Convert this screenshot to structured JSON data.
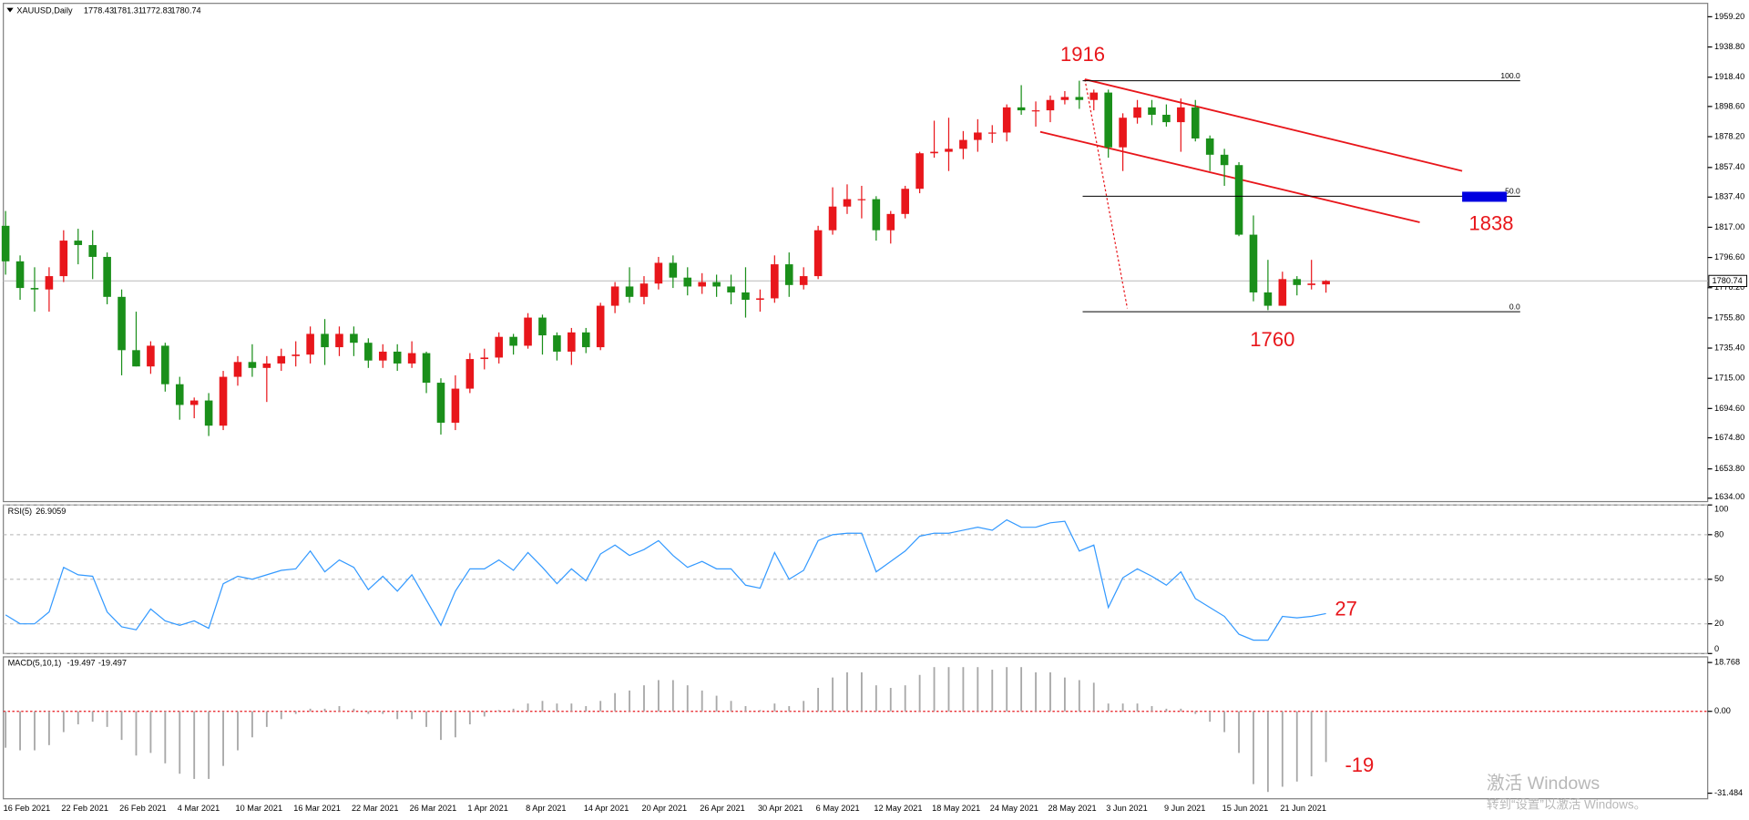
{
  "chart_data": [
    {
      "type": "candlestick",
      "title": "XAUUSD,Daily",
      "categories": [
        "16 Feb 2021",
        null,
        null,
        null,
        "22 Feb 2021",
        null,
        null,
        null,
        "26 Feb 2021",
        null,
        null,
        null,
        "4 Mar 2021",
        null,
        null,
        null,
        "10 Mar 2021",
        null,
        null,
        null,
        "16 Mar 2021",
        null,
        null,
        null,
        "22 Mar 2021",
        null,
        null,
        null,
        "26 Mar 2021",
        null,
        null,
        null,
        "1 Apr 2021",
        null,
        null,
        null,
        "8 Apr 2021",
        null,
        null,
        null,
        "14 Apr 2021",
        null,
        null,
        null,
        "20 Apr 2021",
        null,
        null,
        null,
        "26 Apr 2021",
        null,
        null,
        null,
        "30 Apr 2021",
        null,
        null,
        null,
        "6 May 2021",
        null,
        null,
        null,
        "12 May 2021",
        null,
        null,
        null,
        "18 May 2021",
        null,
        null,
        null,
        "24 May 2021",
        null,
        null,
        null,
        "28 May 2021",
        null,
        null,
        null,
        "3 Jun 2021",
        null,
        null,
        null,
        "9 Jun 2021",
        null,
        null,
        null,
        "15 Jun 2021",
        null,
        null,
        null,
        "21 Jun 2021",
        null,
        null,
        null
      ],
      "open": [
        1818,
        1794,
        1776,
        1775,
        1784,
        1808,
        1805,
        1797,
        1770,
        1734,
        1723,
        1737,
        1711,
        1697,
        1700,
        1683,
        1716,
        1726,
        1722,
        1725,
        1730,
        1731,
        1745,
        1736,
        1745,
        1739,
        1727,
        1733,
        1725,
        1732,
        1712,
        1685,
        1708,
        1728,
        1729,
        1743,
        1737,
        1756,
        1744,
        1733,
        1746,
        1736,
        1764,
        1777,
        1770,
        1779,
        1793,
        1783,
        1777,
        1780,
        1777,
        1773,
        1768,
        1769,
        1792,
        1778,
        1784,
        1815,
        1831,
        1836,
        1836,
        1815,
        1826,
        1843,
        1867,
        1868,
        1870,
        1876,
        1881,
        1881,
        1898,
        1896,
        1896,
        1903,
        1905,
        1903,
        1908,
        1871,
        1891,
        1898,
        1893,
        1888,
        1898,
        1877,
        1866,
        1859,
        1812,
        1773,
        1764,
        1782,
        1778,
        1778.43
      ],
      "high": [
        1828,
        1798,
        1790,
        1790,
        1815,
        1816,
        1815,
        1800,
        1775,
        1760,
        1740,
        1739,
        1716,
        1702,
        1705,
        1720,
        1730,
        1738,
        1730,
        1735,
        1740,
        1750,
        1755,
        1750,
        1750,
        1742,
        1738,
        1738,
        1740,
        1733,
        1715,
        1717,
        1732,
        1735,
        1746,
        1745,
        1759,
        1758,
        1746,
        1749,
        1749,
        1766,
        1780,
        1790,
        1784,
        1797,
        1798,
        1790,
        1786,
        1785,
        1785,
        1790,
        1775,
        1798,
        1800,
        1790,
        1818,
        1844,
        1846,
        1845,
        1838,
        1828,
        1845,
        1868,
        1889,
        1891,
        1882,
        1890,
        1886,
        1900,
        1913,
        1902,
        1906,
        1909,
        1916,
        1910,
        1910,
        1894,
        1903,
        1903,
        1900,
        1904,
        1903,
        1879,
        1870,
        1861,
        1825,
        1795,
        1787,
        1784,
        1795,
        1781.31
      ],
      "low": [
        1785,
        1768,
        1760,
        1760,
        1780,
        1792,
        1782,
        1765,
        1717,
        1723,
        1718,
        1706,
        1687,
        1688,
        1676,
        1680,
        1710,
        1716,
        1699,
        1720,
        1723,
        1725,
        1724,
        1730,
        1730,
        1722,
        1722,
        1720,
        1722,
        1705,
        1677,
        1680,
        1705,
        1721,
        1725,
        1731,
        1735,
        1731,
        1727,
        1724,
        1732,
        1734,
        1759,
        1766,
        1765,
        1775,
        1776,
        1771,
        1772,
        1770,
        1765,
        1756,
        1760,
        1766,
        1770,
        1775,
        1782,
        1812,
        1826,
        1823,
        1808,
        1806,
        1823,
        1840,
        1864,
        1855,
        1863,
        1868,
        1874,
        1875,
        1893,
        1885,
        1888,
        1900,
        1897,
        1896,
        1864,
        1855,
        1887,
        1886,
        1885,
        1868,
        1875,
        1855,
        1845,
        1811,
        1767,
        1761,
        1764,
        1771,
        1775,
        1772.83
      ],
      "close": [
        1794,
        1776,
        1775,
        1784,
        1808,
        1805,
        1797,
        1770,
        1734,
        1723,
        1737,
        1711,
        1697,
        1700,
        1683,
        1716,
        1726,
        1722,
        1725,
        1730,
        1731,
        1745,
        1736,
        1745,
        1739,
        1727,
        1733,
        1725,
        1732,
        1712,
        1685,
        1708,
        1728,
        1729,
        1743,
        1737,
        1756,
        1744,
        1733,
        1746,
        1736,
        1764,
        1777,
        1770,
        1779,
        1793,
        1783,
        1777,
        1780,
        1777,
        1773,
        1768,
        1769,
        1792,
        1778,
        1784,
        1815,
        1831,
        1836,
        1836,
        1815,
        1826,
        1843,
        1867,
        1868,
        1870,
        1876,
        1881,
        1881,
        1898,
        1896,
        1896,
        1903,
        1905,
        1903,
        1908,
        1871,
        1891,
        1898,
        1893,
        1888,
        1898,
        1877,
        1866,
        1859,
        1812,
        1773,
        1764,
        1782,
        1778,
        1779,
        1780.74
      ],
      "up_color": "#e8161b",
      "down_color": "#1a8f1a",
      "ylim": [
        1631.7,
        1966.75
      ],
      "yticks": [
        {
          "value": 1959.2,
          "label": "1959.20"
        },
        {
          "value": 1938.8,
          "label": "1938.80"
        },
        {
          "value": 1918.4,
          "label": "1918.40"
        },
        {
          "value": 1898.6,
          "label": "1898.60"
        },
        {
          "value": 1878.2,
          "label": "1878.20"
        },
        {
          "value": 1857.4,
          "label": "1857.40"
        },
        {
          "value": 1837.4,
          "label": "1837.40"
        },
        {
          "value": 1817,
          "label": "1817.00"
        },
        {
          "value": 1796.6,
          "label": "1796.60"
        },
        {
          "value": 1776.2,
          "label": "1776.20"
        },
        {
          "value": 1755.8,
          "label": "1755.80"
        },
        {
          "value": 1735.4,
          "label": "1735.40"
        },
        {
          "value": 1715,
          "label": "1715.00"
        },
        {
          "value": 1694.6,
          "label": "1694.60"
        },
        {
          "value": 1674.8,
          "label": "1674.80"
        },
        {
          "value": 1653.8,
          "label": "1653.80"
        },
        {
          "value": 1634,
          "label": "1634.00"
        }
      ],
      "grid": false,
      "fibonacci": {
        "high": 1916,
        "low": 1760,
        "color": "#000000",
        "levels": [
          {
            "value": 100,
            "label": "100.0"
          },
          {
            "value": 50,
            "label": "50.0"
          },
          {
            "value": 0,
            "label": "0.0"
          }
        ]
      },
      "annotations": [
        "1916",
        "1838",
        "1760"
      ]
    },
    {
      "type": "line",
      "title": "RSI(5)",
      "color": "#3399ff",
      "values": [
        26,
        20,
        20,
        28,
        58,
        53,
        52,
        28,
        18,
        16,
        30,
        22,
        19,
        22,
        17,
        47,
        52,
        50,
        53,
        56,
        57,
        69,
        55,
        63,
        58,
        43,
        52,
        42,
        53,
        36,
        19,
        42,
        57,
        57,
        63,
        56,
        68,
        58,
        47,
        57,
        49,
        67,
        73,
        66,
        70,
        76,
        66,
        58,
        62,
        57,
        57,
        46,
        44,
        68,
        50,
        56,
        76,
        80,
        81,
        81,
        55,
        62,
        69,
        79,
        81,
        81,
        83,
        85,
        83,
        90,
        85,
        85,
        88,
        89,
        69,
        73,
        31,
        51,
        57,
        52,
        46,
        55,
        37,
        31,
        25,
        13,
        9,
        9,
        25,
        24,
        25,
        26.9059
      ],
      "ylim": [
        0,
        100
      ],
      "yticks": [
        100,
        80,
        50,
        20,
        0
      ],
      "grid": true,
      "annotations": [
        "27"
      ]
    },
    {
      "type": "histogram",
      "title": "MACD(5,10,1)",
      "color": "#a8a8a8",
      "values": [
        -14,
        -15,
        -15,
        -13,
        -8,
        -5,
        -4,
        -6,
        -11,
        -17,
        -16,
        -20,
        -24,
        -26,
        -26,
        -21,
        -15,
        -10,
        -6,
        -3,
        -1,
        1,
        1,
        2,
        1,
        -1,
        -1,
        -3,
        -3,
        -6,
        -11,
        -10,
        -5,
        -2,
        0.5,
        1,
        3,
        4,
        3,
        3,
        2,
        4,
        7,
        8,
        10,
        12,
        12,
        10,
        8,
        6,
        4,
        2,
        0.5,
        3,
        2,
        4,
        9,
        13,
        15,
        15,
        10,
        9,
        10,
        14,
        17,
        17,
        17,
        17,
        16,
        17,
        17,
        15,
        15,
        13,
        12,
        11,
        3,
        3,
        3,
        2,
        1,
        1,
        -1,
        -4,
        -8,
        -16,
        -28,
        -31,
        -29,
        -27,
        -25,
        -19.497
      ],
      "signal": -19.497,
      "zero_line_color": "#e8161b",
      "ylim": [
        -33.2,
        20.5
      ],
      "yticks": [
        18.768,
        {
          "value": 0,
          "label": "0.00"
        },
        -31.484
      ],
      "grid": false,
      "annotations": [
        "-19"
      ]
    }
  ],
  "watermark": [
    "激活 Windows",
    "转到“设置”以激活 Windows。"
  ]
}
